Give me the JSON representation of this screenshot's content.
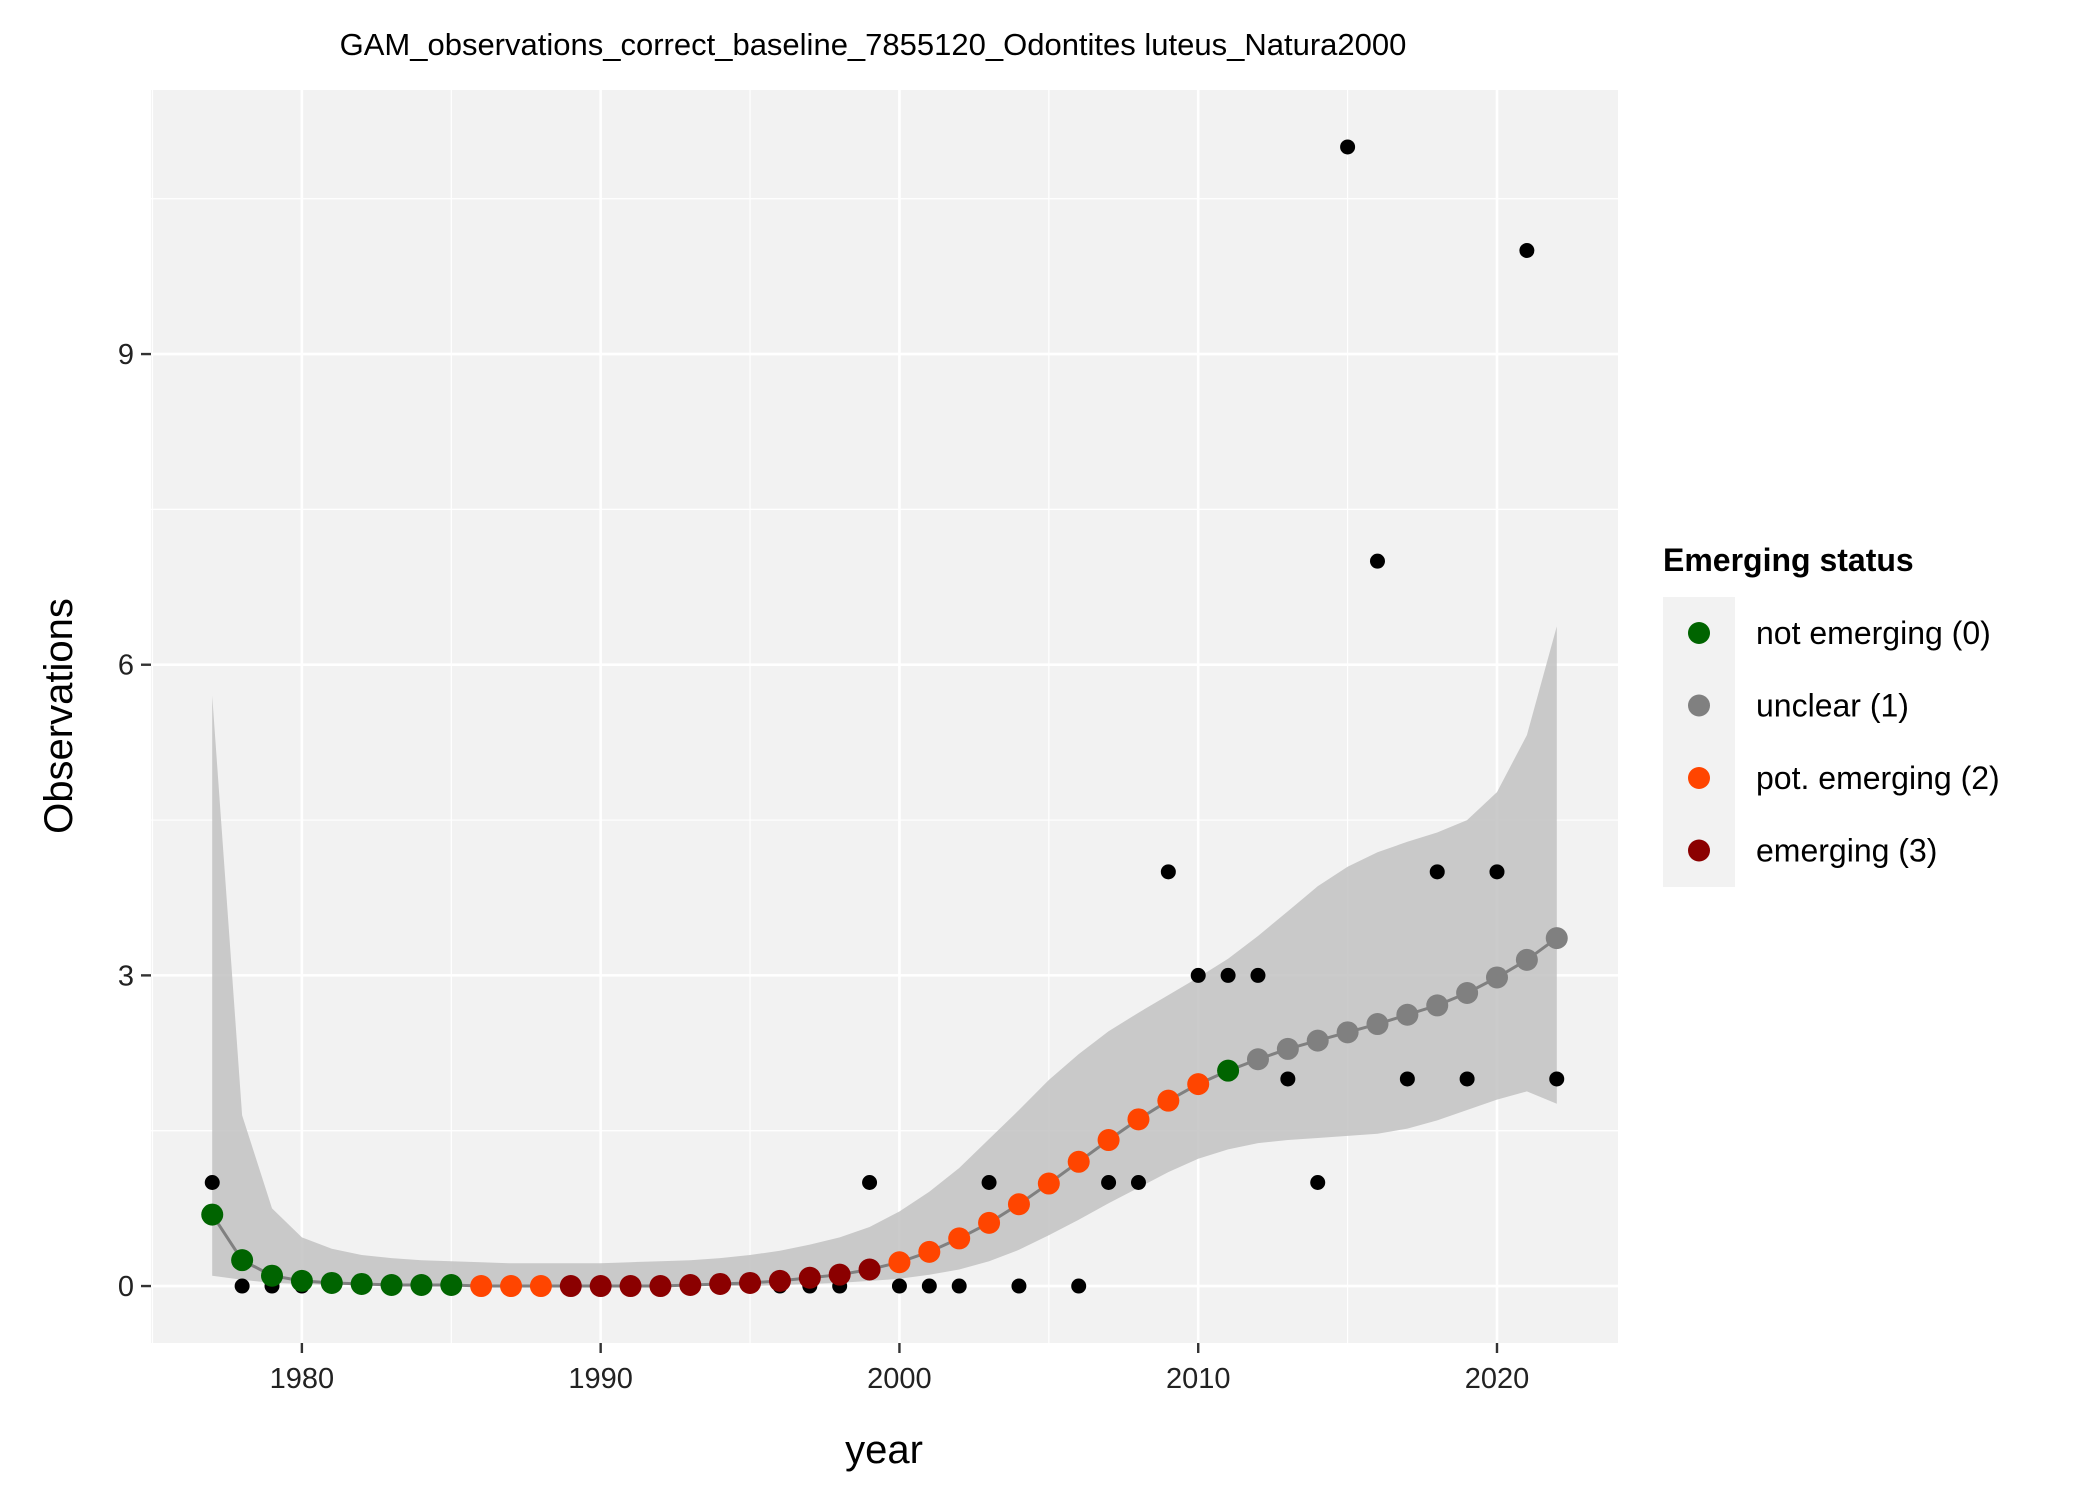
{
  "chart_data": {
    "type": "scatter",
    "title": "GAM_observations_correct_baseline_7855120_Odontites luteus_Natura2000",
    "xlabel": "year",
    "ylabel": "Observations",
    "x_ticks": [
      1980,
      1990,
      2000,
      2010,
      2020
    ],
    "y_ticks": [
      0,
      3,
      6,
      9
    ],
    "xlim": [
      1974.95,
      2024.05
    ],
    "ylim": [
      -0.55,
      11.55
    ],
    "grid": true,
    "legend": {
      "position": "right",
      "title": "Emerging status",
      "entries": [
        {
          "label": "not emerging (0)",
          "color": "#006400",
          "status": 0
        },
        {
          "label": "unclear (1)",
          "color": "#808080",
          "status": 1
        },
        {
          "label": "pot. emerging (2)",
          "color": "#FF4500",
          "status": 2
        },
        {
          "label": "emerging (3)",
          "color": "#8B0000",
          "status": 3
        }
      ]
    },
    "observations": {
      "color": "#000000",
      "x": [
        1977,
        1978,
        1979,
        1980,
        1981,
        1982,
        1983,
        1984,
        1985,
        1986,
        1987,
        1988,
        1989,
        1990,
        1991,
        1992,
        1993,
        1994,
        1995,
        1996,
        1997,
        1998,
        1999,
        2000,
        2001,
        2002,
        2003,
        2004,
        2005,
        2006,
        2007,
        2008,
        2009,
        2010,
        2011,
        2012,
        2013,
        2014,
        2015,
        2016,
        2017,
        2018,
        2019,
        2020,
        2021,
        2022
      ],
      "y": [
        1,
        0,
        0,
        0,
        0,
        0,
        0,
        0,
        0,
        0,
        0,
        0,
        0,
        0,
        0,
        0,
        0,
        0,
        0,
        0,
        0,
        0,
        1,
        0,
        0,
        0,
        1,
        0,
        1,
        0,
        1,
        1,
        4,
        3,
        3,
        3,
        2,
        1,
        11,
        7,
        2,
        4,
        2,
        4,
        10,
        2
      ]
    },
    "gam_fit": {
      "line_color": "#808080",
      "ribbon_color": "#BEBEBE",
      "x": [
        1977,
        1978,
        1979,
        1980,
        1981,
        1982,
        1983,
        1984,
        1985,
        1986,
        1987,
        1988,
        1989,
        1990,
        1991,
        1992,
        1993,
        1994,
        1995,
        1996,
        1997,
        1998,
        1999,
        2000,
        2001,
        2002,
        2003,
        2004,
        2005,
        2006,
        2007,
        2008,
        2009,
        2010,
        2011,
        2012,
        2013,
        2014,
        2015,
        2016,
        2017,
        2018,
        2019,
        2020,
        2021,
        2022
      ],
      "fit": [
        0.69,
        0.25,
        0.1,
        0.05,
        0.03,
        0.02,
        0.01,
        0.01,
        0.01,
        0.0,
        0.0,
        0.0,
        0.0,
        0.0,
        0.0,
        0.0,
        0.01,
        0.02,
        0.03,
        0.05,
        0.08,
        0.11,
        0.16,
        0.23,
        0.33,
        0.46,
        0.61,
        0.79,
        0.99,
        1.2,
        1.41,
        1.61,
        1.79,
        1.95,
        2.08,
        2.19,
        2.29,
        2.37,
        2.45,
        2.53,
        2.62,
        2.71,
        2.83,
        2.98,
        3.15,
        3.36
      ],
      "lower": [
        0.1,
        0.06,
        0.03,
        0.02,
        0.01,
        0.01,
        0.0,
        0.0,
        0.0,
        0.0,
        0.0,
        0.0,
        0.0,
        0.0,
        0.0,
        0.0,
        0.0,
        0.0,
        0.0,
        0.01,
        0.02,
        0.03,
        0.05,
        0.07,
        0.11,
        0.16,
        0.24,
        0.35,
        0.49,
        0.64,
        0.8,
        0.95,
        1.1,
        1.23,
        1.32,
        1.38,
        1.41,
        1.43,
        1.45,
        1.47,
        1.52,
        1.6,
        1.7,
        1.8,
        1.88,
        1.76
      ],
      "upper": [
        5.7,
        1.65,
        0.75,
        0.47,
        0.36,
        0.3,
        0.27,
        0.25,
        0.24,
        0.23,
        0.22,
        0.22,
        0.22,
        0.22,
        0.23,
        0.24,
        0.25,
        0.27,
        0.3,
        0.34,
        0.4,
        0.47,
        0.57,
        0.72,
        0.91,
        1.14,
        1.42,
        1.7,
        1.99,
        2.24,
        2.46,
        2.64,
        2.81,
        2.98,
        3.16,
        3.38,
        3.62,
        3.86,
        4.05,
        4.19,
        4.29,
        4.38,
        4.5,
        4.77,
        5.32,
        6.37
      ],
      "status": [
        0,
        0,
        0,
        0,
        0,
        0,
        0,
        0,
        0,
        2,
        2,
        2,
        3,
        3,
        3,
        3,
        3,
        3,
        3,
        3,
        3,
        3,
        3,
        2,
        2,
        2,
        2,
        2,
        2,
        2,
        2,
        2,
        2,
        2,
        0,
        1,
        1,
        1,
        1,
        1,
        1,
        1,
        1,
        1,
        1,
        1
      ]
    }
  }
}
